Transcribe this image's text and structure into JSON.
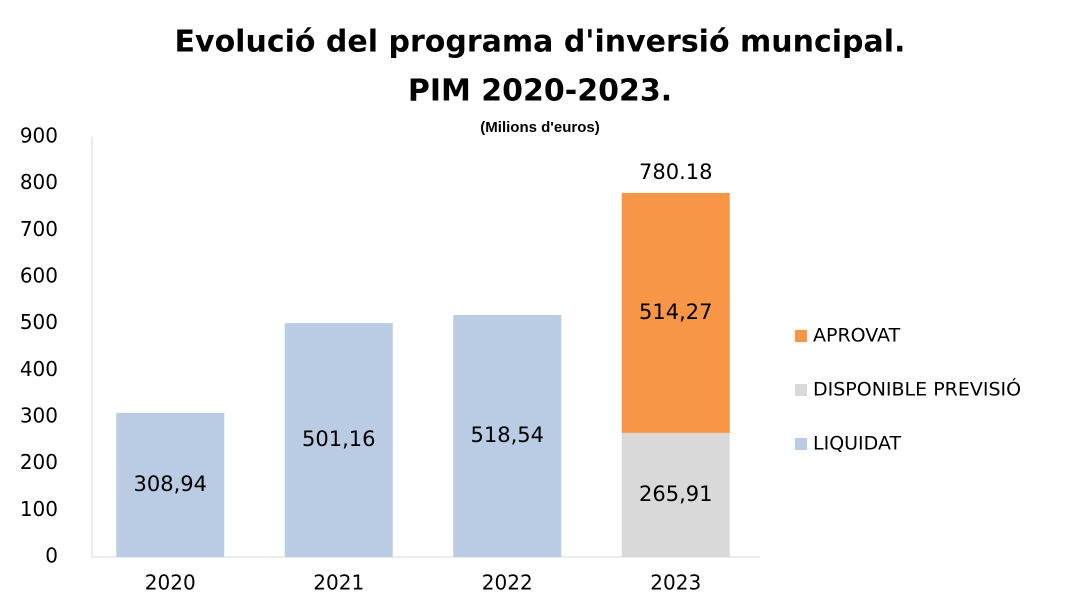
{
  "chart_data": {
    "type": "stacked-bar",
    "title": [
      "Evolució del programa d'inversió muncipal.",
      "PIM 2020-2023."
    ],
    "subtitle": "(Milions  d'euros)",
    "categories": [
      "2020",
      "2021",
      "2022",
      "2023"
    ],
    "series": [
      {
        "name": "LIQUIDAT",
        "color": "#b9cce4",
        "values": [
          308.94,
          501.16,
          518.54,
          null
        ],
        "value_labels": [
          "308,94",
          "501,16",
          "518,54",
          null
        ]
      },
      {
        "name": "DISPONIBLE PREVISIÓ",
        "color": "#d9d9d9",
        "values": [
          null,
          null,
          null,
          265.91
        ],
        "value_labels": [
          null,
          null,
          null,
          "265,91"
        ]
      },
      {
        "name": "APROVAT",
        "color": "#f79646",
        "values": [
          null,
          null,
          null,
          514.27
        ],
        "value_labels": [
          null,
          null,
          null,
          "514,27"
        ]
      }
    ],
    "totals": [
      null,
      null,
      null,
      780.18
    ],
    "ylim": [
      0,
      900
    ],
    "yticks": [
      0,
      100,
      200,
      300,
      400,
      500,
      600,
      700,
      800,
      900
    ],
    "grid": false,
    "legend": "right"
  }
}
